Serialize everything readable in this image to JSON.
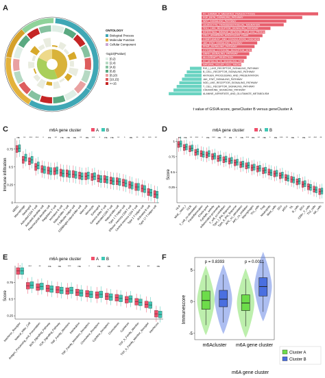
{
  "panels": {
    "A": {
      "label": "A",
      "legend_title": "ONTOLOGY",
      "legend_items": [
        {
          "name": "Biological Process",
          "color": "#3fa7b5"
        },
        {
          "name": "Molecular Function",
          "color": "#e3b23c"
        },
        {
          "name": "Cellular Component",
          "color": "#c9a6d6"
        }
      ],
      "scale_title": "-log10(Pvalue)",
      "scale_items": [
        {
          "name": "[0,2)",
          "color": "#dfeee5"
        },
        {
          "name": "[2,4)",
          "color": "#b6d9c3"
        },
        {
          "name": "[4,6)",
          "color": "#86c2a0"
        },
        {
          "name": "[6,8)",
          "color": "#5aa981"
        },
        {
          "name": "[8,10)",
          "color": "#e9a1a1"
        },
        {
          "name": "[10,15)",
          "color": "#dd5d5d"
        },
        {
          "name": ">=15",
          "color": "#c52525"
        }
      ]
    },
    "B": {
      "label": "B",
      "xlabel": "t value of GSVA score, geneCluster B versus geneCluster A",
      "positive_color": "#e8616f",
      "negative_color": "#69d3c1",
      "chart_data": {
        "type": "bar",
        "orientation": "horizontal",
        "categories": [
          "FC_GAMMA_R_MEDIATED_PHAGOCYTOSIS",
          "FGF_BETA_SIGNALING_PATHWAY",
          "WNT_SIGNALING_PATHWAY",
          "LEUKOCYTE_TRANSENDOTHELIAL_MIGRATION",
          "TOLL_LIKE_RECEPTOR_SIGNALING_PATHWAY",
          "INTESTINAL_IMMUNE_NETWORK_FOR_IGA_PRODUCTION",
          "CELL_ADHESION_MOLECULES_CAMS",
          "COMPLEMENT_AND_COAGULATION_CASCADES",
          "JAK_STAT_SIGNALING_PATHWAY",
          "PPAR_SIGNALING_PATHWAY",
          "CYTOKINE_CYTOKINE_RECEPTOR_INTERACTION",
          "GNRH_SIGNALING_PATHWAY",
          "ALLOGRAFT_REJECTION",
          "FC_EPSILON_RI_SIGNALING_PATHWAY",
          "NATURAL_KILLER_CELL_MEDIATED_CYTOTOXICITY",
          "RIG_I_LIKE_RECEPTOR_SIGNALING_PATHWAY",
          "B_CELL_RECEPTOR_SIGNALING_PATHWAY",
          "ANTIGEN_PROCESSING_AND_PRESENTATION",
          "JAK_STAT_SIGNALING_PATHWAY",
          "NOD_LIKE_RECEPTOR_SIGNALING_PATHWAY",
          "T_CELL_RECEPTOR_SIGNALING_PATHWAY",
          "CHEMOKINE_SIGNALING_PATHWAY",
          "ALANINE_ASPARTATE_AND_GLUTAMATE_METABOLISM"
        ],
        "values": [
          22,
          19,
          16,
          15.5,
          13,
          12,
          11.5,
          11,
          10.5,
          10,
          9.5,
          9,
          8.5,
          8,
          7.5,
          -2.2,
          -2.8,
          -3.2,
          -3.7,
          -4.2,
          -4.7,
          -5.3,
          -6.2
        ]
      }
    },
    "C": {
      "label": "C",
      "legend_title": "m6A gene cluster",
      "legend_a": "A",
      "legend_b": "B",
      "ylabel": "Immune infiltration",
      "chart_data": {
        "type": "box",
        "categories": [
          "MDSC",
          "Macrophage",
          "Neutrophil",
          "Activated CD4 T cell",
          "Activated dendritic cell",
          "Plasmacytoid dendritic cell",
          "Regulatory T cell",
          "Immature B cell",
          "Natural killer T cell",
          "T follicular helper cell",
          "CD56bright natural killer cell",
          "Mast cell",
          "Monocyte",
          "Eosinophil",
          "Gamma delta T cell",
          "Activated CD8 T cell",
          "Natural killer cell",
          "Type 1 T helper cell",
          "Effector memory CD8 T cell",
          "Central memory CD4 T cell",
          "Type 2 T helper cell",
          "Activated B cell",
          "Type 17 T helper cell"
        ],
        "medians_A": [
          0.75,
          0.6,
          0.58,
          0.5,
          0.47,
          0.45,
          0.44,
          0.42,
          0.41,
          0.4,
          0.38,
          0.37,
          0.36,
          0.34,
          0.33,
          0.31,
          0.3,
          0.28,
          0.25,
          0.22,
          0.2,
          0.15,
          0.12
        ],
        "medians_B": [
          0.76,
          0.63,
          0.6,
          0.52,
          0.46,
          0.44,
          0.45,
          0.41,
          0.4,
          0.39,
          0.37,
          0.38,
          0.37,
          0.33,
          0.32,
          0.3,
          0.29,
          0.27,
          0.24,
          0.22,
          0.19,
          0.14,
          0.11
        ],
        "significance": [
          "ns",
          "**",
          "***",
          "***",
          "*",
          "ns",
          "**",
          "ns",
          "ns",
          "ns",
          "**",
          "ns",
          "***",
          "*",
          "ns",
          "ns",
          "**",
          "*",
          "ns",
          "**",
          "**",
          "***",
          "**"
        ]
      }
    },
    "D": {
      "label": "D",
      "legend_title": "m6A gene cluster",
      "legend_a": "A",
      "legend_b": "B",
      "ylabel": "Score",
      "chart_data": {
        "type": "box",
        "categories": [
          "HLA",
          "MHC_class_I",
          "CCR",
          "T_cell_co-stimulation",
          "Parainflammation",
          "Check-point",
          "Cytolytic_activity",
          "Inflammation-promoting",
          "T_cell_co-inhibition",
          "Type_I_IFN_Reponse",
          "Type_II_IFN_Reponse",
          "APC_co_stimulation",
          "APC_co_inhibition",
          "Macrophages",
          "Th1_cells",
          "Treg",
          "Neutrophils",
          "Mast_cells",
          "DCs",
          "pDCs",
          "TIL",
          "B_cells",
          "iDCs",
          "CD8+_T_cells",
          "Th2_cells",
          "NK_cells"
        ],
        "medians_A": [
          0.95,
          0.9,
          0.88,
          0.82,
          0.8,
          0.78,
          0.75,
          0.72,
          0.7,
          0.68,
          0.65,
          0.62,
          0.6,
          0.57,
          0.55,
          0.52,
          0.5,
          0.47,
          0.44,
          0.41,
          0.38,
          0.34,
          0.3,
          0.26,
          0.22,
          0.18
        ],
        "medians_B": [
          0.96,
          0.91,
          0.89,
          0.83,
          0.79,
          0.8,
          0.76,
          0.73,
          0.71,
          0.69,
          0.66,
          0.63,
          0.61,
          0.58,
          0.56,
          0.53,
          0.49,
          0.48,
          0.45,
          0.4,
          0.37,
          0.35,
          0.31,
          0.25,
          0.21,
          0.19
        ],
        "significance": [
          "ns",
          "ns",
          "**",
          "***",
          "*",
          "ns",
          "***",
          "ns",
          "**",
          "ns",
          "*",
          "ns",
          "***",
          "ns",
          "**",
          "ns",
          "*",
          "ns",
          "***",
          "**",
          "ns",
          "*",
          "ns",
          "**",
          "***",
          "**"
        ]
      }
    },
    "E": {
      "label": "E",
      "legend_title": "m6A gene cluster",
      "legend_a": "A",
      "legend_b": "B",
      "ylabel": "Score",
      "chart_data": {
        "type": "box",
        "categories": [
          "Interferon_Receptor",
          "Natural_Killer_Cell",
          "Antigen_Processing_and_Presentation",
          "BCR_Signaling_Pathway",
          "TCR_Signaling_Pathway",
          "TNF_Family_Members",
          "Interleukins",
          "TNF_Family_Members_Receptors",
          "Chemokine_Receptors",
          "Cytokine_Receptors",
          "Chemokines",
          "Cytokines",
          "TGF_b_Family_Member",
          "TGF_b_Family_Member_Receptor",
          "Interferons"
        ],
        "medians_A": [
          0.92,
          0.7,
          0.68,
          0.66,
          0.64,
          0.62,
          0.6,
          0.58,
          0.56,
          0.54,
          0.52,
          0.49,
          0.46,
          0.42,
          0.28
        ],
        "medians_B": [
          0.92,
          0.71,
          0.69,
          0.65,
          0.63,
          0.63,
          0.59,
          0.57,
          0.57,
          0.53,
          0.51,
          0.5,
          0.45,
          0.41,
          0.27
        ],
        "significance": [
          "*",
          "***",
          "**",
          "ns",
          "ns",
          "***",
          "ns",
          "*",
          "ns",
          "ns",
          "**",
          "***",
          "ns",
          "**",
          "ns"
        ]
      }
    },
    "F": {
      "label": "F",
      "ylabel": "Immunescore",
      "xlabel": "m6A gene cluster",
      "legend_a": "Cluster A",
      "legend_b": "Cluster B",
      "color_a": "#6ddc4a",
      "color_b": "#4a6fe0",
      "chart_data": {
        "type": "violin",
        "groups": [
          "m6Acluster",
          "m6A gene cluster"
        ],
        "pvalues": [
          "p = 0.8393",
          "p = 0.0011"
        ],
        "yticks": [
          -5,
          0,
          5
        ],
        "medians_A": [
          0.2,
          -0.2
        ],
        "medians_B": [
          0.4,
          2.4
        ],
        "q1_A": [
          -1.2,
          -1.4
        ],
        "q3_A": [
          1.7,
          1.1
        ],
        "q1_B": [
          -0.8,
          0.9
        ],
        "q3_B": [
          1.8,
          3.8
        ]
      }
    }
  }
}
